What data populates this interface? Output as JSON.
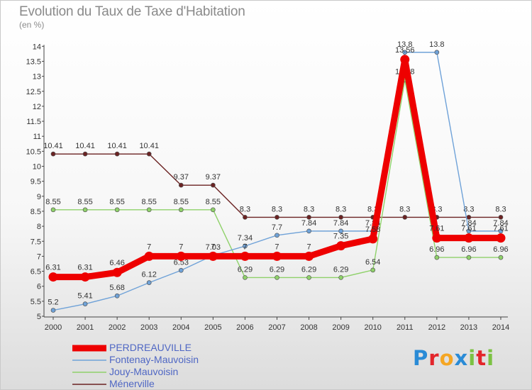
{
  "title": "Evolution du Taux de Taxe d'Habitation",
  "unit_label": "(en %)",
  "logo": {
    "letters": [
      "P",
      "r",
      "o",
      "x",
      "i",
      "t",
      "i"
    ],
    "colors": [
      "#2a8bd6",
      "#e3252b",
      "#f5a623",
      "#2a8bd6",
      "#7cc243",
      "#e3252b",
      "#7cc243"
    ]
  },
  "chart_data": {
    "type": "line",
    "title": "Evolution du Taux de Taxe d'Habitation",
    "ylabel": "(en %)",
    "x": [
      "2000",
      "2001",
      "2002",
      "2003",
      "2004",
      "2005",
      "2006",
      "2007",
      "2008",
      "2009",
      "2010",
      "2011",
      "2012",
      "2013",
      "2014"
    ],
    "ylim": [
      5,
      14
    ],
    "yticks": [
      "5",
      "5.5",
      "6",
      "6.5",
      "7",
      "7.5",
      "8",
      "8.5",
      "9",
      "9.5",
      "10",
      "10.5",
      "11",
      "11.5",
      "12",
      "12.5",
      "13",
      "13.5",
      "14"
    ],
    "grid": false,
    "legend_position": "bottom-left",
    "series": [
      {
        "name": "Ménerville",
        "color": "#6b2222",
        "values": [
          10.41,
          10.41,
          10.41,
          10.41,
          9.37,
          9.37,
          8.3,
          8.3,
          8.3,
          8.3,
          8.3,
          8.3,
          8.3,
          8.3,
          8.3
        ],
        "labels": [
          "10.41",
          "10.41",
          "10.41",
          "10.41",
          "9.37",
          "9.37",
          "8.3",
          "8.3",
          "8.3",
          "8.3",
          "8.3",
          "8.3",
          "8.3",
          "8.3",
          "8.3"
        ]
      },
      {
        "name": "Jouy-Mauvoisin",
        "color": "#8fd16a",
        "values": [
          8.55,
          8.55,
          8.55,
          8.55,
          8.55,
          8.55,
          6.29,
          6.29,
          6.29,
          6.29,
          6.54,
          12.88,
          6.96,
          6.96,
          6.96
        ],
        "labels": [
          "8.55",
          "8.55",
          "8.55",
          "8.55",
          "8.55",
          "8.55",
          "6.29",
          "6.29",
          "6.29",
          "6.29",
          "6.54",
          "12.88",
          "6.96",
          "6.96",
          "6.96"
        ]
      },
      {
        "name": "Fontenay-Mauvoisin",
        "color": "#6fa2d8",
        "values": [
          5.2,
          5.41,
          5.68,
          6.12,
          6.53,
          7.03,
          7.34,
          7.7,
          7.84,
          7.84,
          7.84,
          13.8,
          13.8,
          7.84,
          7.84
        ],
        "labels": [
          "5.2",
          "5.41",
          "5.68",
          "6.12",
          "6.53",
          "7.03",
          "7.34",
          "7.7",
          "7.84",
          "7.84",
          "7.84",
          "13.8",
          "13.8",
          "7.84",
          "7.84"
        ]
      },
      {
        "name": "PERDREAUVILLE",
        "color": "#ee0000",
        "values": [
          6.31,
          6.31,
          6.46,
          7,
          7,
          7,
          7,
          7,
          7,
          7.35,
          7.58,
          13.56,
          7.61,
          7.61,
          7.61
        ],
        "labels": [
          "6.31",
          "6.31",
          "6.46",
          "7",
          "7",
          "7",
          "7",
          "7",
          "7",
          "7.35",
          "7.58",
          "13.56",
          "7.61",
          "7.61",
          "7.61"
        ]
      }
    ],
    "legend_order": [
      "PERDREAUVILLE",
      "Fontenay-Mauvoisin",
      "Jouy-Mauvoisin",
      "Ménerville"
    ]
  }
}
